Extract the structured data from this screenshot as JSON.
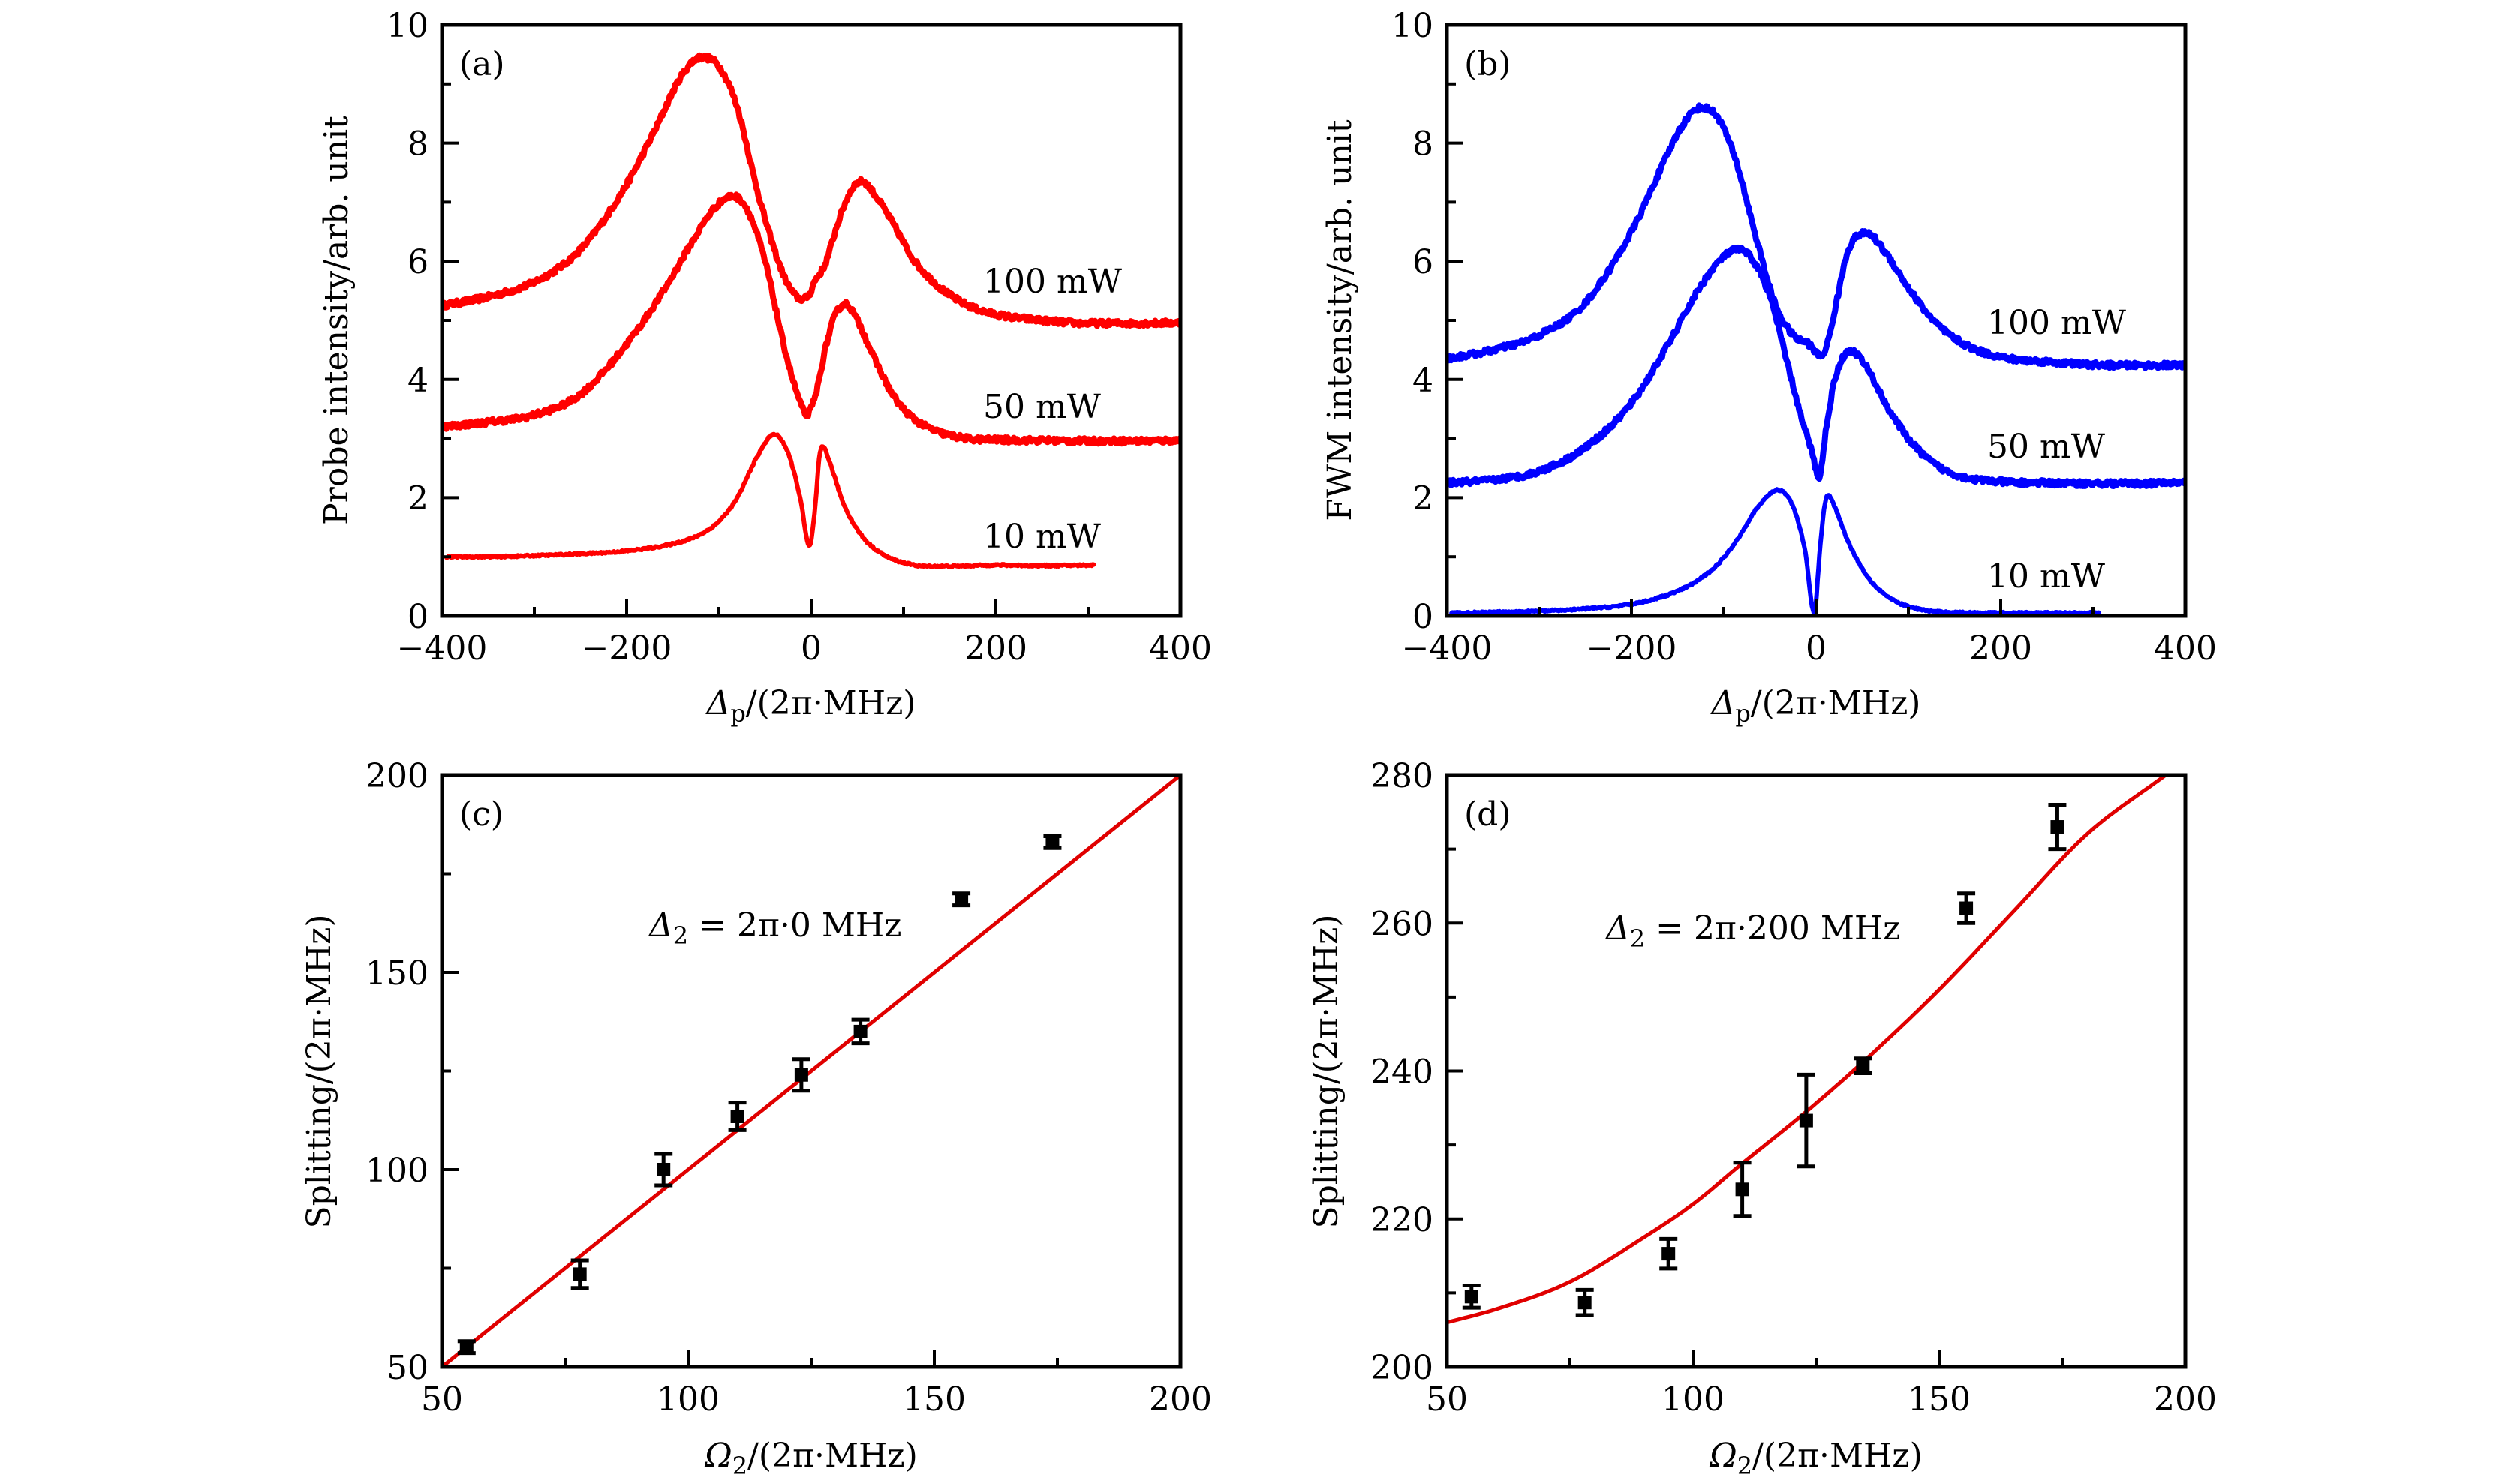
{
  "figure": {
    "panels": [
      "(a)",
      "(b)",
      "(c)",
      "(d)"
    ]
  },
  "chart_data": [
    {
      "id": "a",
      "type": "line",
      "panel_label": "(a)",
      "xlabel_symbol": "Δ",
      "xlabel_sub": "p",
      "xlabel_rest": "/(2π·MHz)",
      "ylabel": "Probe intensity/arb. unit",
      "xlim": [
        -400,
        400
      ],
      "ylim": [
        0,
        10
      ],
      "xticks": [
        -400,
        -200,
        0,
        200,
        400
      ],
      "xtick_labels": [
        "−400",
        "−200",
        "0",
        "200",
        "400"
      ],
      "xminor": [
        -300,
        -100,
        100,
        300
      ],
      "yticks": [
        0,
        2,
        4,
        6,
        8,
        10
      ],
      "ytick_labels": [
        "0",
        "2",
        "4",
        "6",
        "8",
        "10"
      ],
      "yminor": [
        1,
        3,
        5,
        7,
        9
      ],
      "color": "#ff0000",
      "grid": false,
      "series": [
        {
          "name": "100 mW",
          "label": "100 mW",
          "x": [
            -400,
            -350,
            -300,
            -250,
            -200,
            -170,
            -140,
            -120,
            -100,
            -80,
            -60,
            -40,
            -25,
            -10,
            0,
            2,
            15,
            30,
            45,
            55,
            70,
            90,
            110,
            140,
            170,
            200,
            250,
            300,
            350,
            400
          ],
          "y": [
            5.25,
            5.4,
            5.65,
            6.2,
            7.3,
            8.2,
            9.15,
            9.45,
            9.3,
            8.6,
            7.3,
            6.2,
            5.6,
            5.36,
            5.5,
            5.6,
            5.95,
            6.7,
            7.25,
            7.35,
            7.1,
            6.6,
            6.05,
            5.55,
            5.25,
            5.1,
            5.0,
            4.95,
            4.95,
            4.96
          ]
        },
        {
          "name": "50 mW",
          "label": "50 mW",
          "x": [
            -400,
            -350,
            -300,
            -250,
            -200,
            -160,
            -130,
            -105,
            -85,
            -70,
            -50,
            -30,
            -15,
            -5,
            5,
            15,
            25,
            37,
            50,
            70,
            90,
            110,
            140,
            170,
            200,
            250,
            300,
            350,
            400
          ],
          "y": [
            3.2,
            3.28,
            3.4,
            3.75,
            4.6,
            5.5,
            6.3,
            6.9,
            7.1,
            6.9,
            6.0,
            4.6,
            3.75,
            3.41,
            3.75,
            4.5,
            5.05,
            5.28,
            5.0,
            4.3,
            3.7,
            3.35,
            3.1,
            3.0,
            2.98,
            2.97,
            2.96,
            2.96,
            2.97
          ]
        },
        {
          "name": "10 mW",
          "label": "10 mW",
          "x": [
            -395,
            -350,
            -300,
            -250,
            -200,
            -150,
            -120,
            -100,
            -80,
            -60,
            -40,
            -25,
            -12,
            -2,
            4,
            9,
            13,
            20,
            35,
            55,
            80,
            100,
            125,
            150,
            200,
            250,
            306
          ],
          "y": [
            1.0,
            1.0,
            1.02,
            1.05,
            1.1,
            1.22,
            1.38,
            1.6,
            2.0,
            2.65,
            3.07,
            2.75,
            2.0,
            1.18,
            1.8,
            2.7,
            2.86,
            2.6,
            1.9,
            1.35,
            1.02,
            0.9,
            0.84,
            0.84,
            0.86,
            0.85,
            0.86
          ]
        }
      ],
      "curve_label_anchor_y": [
        5.8,
        3.6,
        1.2
      ]
    },
    {
      "id": "b",
      "type": "line",
      "panel_label": "(b)",
      "xlabel_symbol": "Δ",
      "xlabel_sub": "p",
      "xlabel_rest": "/(2π·MHz)",
      "ylabel": "FWM intensity/arb. unit",
      "xlim": [
        -400,
        400
      ],
      "ylim": [
        0,
        10
      ],
      "xticks": [
        -400,
        -200,
        0,
        200,
        400
      ],
      "xtick_labels": [
        "−400",
        "−200",
        "0",
        "200",
        "400"
      ],
      "xminor": [
        -300,
        -100,
        100,
        300
      ],
      "yticks": [
        0,
        2,
        4,
        6,
        8,
        10
      ],
      "ytick_labels": [
        "0",
        "2",
        "4",
        "6",
        "8",
        "10"
      ],
      "yminor": [
        1,
        3,
        5,
        7,
        9
      ],
      "color": "#0000ff",
      "grid": false,
      "series": [
        {
          "name": "100 mW",
          "label": "100 mW",
          "x": [
            -400,
            -350,
            -300,
            -250,
            -200,
            -170,
            -145,
            -125,
            -105,
            -85,
            -65,
            -45,
            -25,
            -8,
            5,
            12,
            22,
            35,
            55,
            75,
            100,
            130,
            160,
            200,
            250,
            300,
            350,
            400
          ],
          "y": [
            4.35,
            4.5,
            4.75,
            5.3,
            6.5,
            7.5,
            8.3,
            8.6,
            8.4,
            7.6,
            6.4,
            5.3,
            4.75,
            4.6,
            4.4,
            4.6,
            5.3,
            6.2,
            6.47,
            6.15,
            5.55,
            4.95,
            4.6,
            4.38,
            4.3,
            4.25,
            4.24,
            4.24
          ]
        },
        {
          "name": "50 mW",
          "label": "50 mW",
          "x": [
            -400,
            -350,
            -300,
            -250,
            -200,
            -160,
            -130,
            -105,
            -85,
            -70,
            -50,
            -30,
            -15,
            -5,
            3,
            12,
            22,
            38,
            55,
            75,
            100,
            130,
            160,
            200,
            250,
            300,
            350,
            400
          ],
          "y": [
            2.25,
            2.3,
            2.45,
            2.85,
            3.6,
            4.6,
            5.45,
            6.0,
            6.2,
            6.05,
            5.4,
            4.2,
            3.3,
            2.8,
            2.35,
            3.3,
            4.1,
            4.48,
            4.2,
            3.6,
            3.0,
            2.55,
            2.35,
            2.27,
            2.25,
            2.24,
            2.24,
            2.26
          ]
        },
        {
          "name": "10 mW",
          "label": "10 mW",
          "x": [
            -395,
            -350,
            -300,
            -250,
            -200,
            -160,
            -130,
            -105,
            -85,
            -65,
            -41,
            -25,
            -12,
            -2,
            4,
            9,
            13,
            20,
            35,
            55,
            80,
            100,
            125,
            150,
            200,
            250,
            306
          ],
          "y": [
            0.05,
            0.06,
            0.08,
            0.12,
            0.2,
            0.36,
            0.58,
            0.9,
            1.3,
            1.8,
            2.13,
            1.85,
            1.1,
            0.05,
            1.1,
            1.85,
            2.04,
            1.85,
            1.25,
            0.68,
            0.3,
            0.16,
            0.08,
            0.06,
            0.05,
            0.05,
            0.05
          ]
        }
      ]
    },
    {
      "id": "c",
      "type": "scatter",
      "panel_label": "(c)",
      "xlabel_symbol": "Ω",
      "xlabel_sub": "2",
      "xlabel_rest": "/(2π·MHz)",
      "ylabel": "Splitting/(2π·MHz)",
      "xlim": [
        50,
        200
      ],
      "ylim": [
        50,
        200
      ],
      "xticks": [
        50,
        100,
        150,
        200
      ],
      "xtick_labels": [
        "50",
        "100",
        "150",
        "200"
      ],
      "xminor": [
        75,
        125,
        175
      ],
      "yticks": [
        50,
        100,
        150,
        200
      ],
      "ytick_labels": [
        "50",
        "100",
        "150",
        "200"
      ],
      "yminor": [
        75,
        125,
        175
      ],
      "annotation": {
        "symbol": "Δ",
        "sub": "2",
        "rest": " = 2π·0 MHz"
      },
      "grid": false,
      "points": {
        "x": [
          55,
          78,
          95,
          110,
          123,
          135,
          155.5,
          174
        ],
        "y": [
          55,
          73.5,
          100,
          113.5,
          124,
          135,
          168.5,
          183
        ],
        "err": [
          1.5,
          3.5,
          4,
          3.5,
          4,
          3,
          1.5,
          1.5
        ],
        "color": "#000000"
      },
      "fit": {
        "name": "fit",
        "color": "#e00000",
        "x": [
          50,
          200
        ],
        "y": [
          50,
          200
        ]
      }
    },
    {
      "id": "d",
      "type": "scatter",
      "panel_label": "(d)",
      "xlabel_symbol": "Ω",
      "xlabel_sub": "2",
      "xlabel_rest": "/(2π·MHz)",
      "ylabel": "Splitting/(2π·MHz)",
      "xlim": [
        50,
        200
      ],
      "ylim": [
        200,
        280
      ],
      "xticks": [
        50,
        100,
        150,
        200
      ],
      "xtick_labels": [
        "50",
        "100",
        "150",
        "200"
      ],
      "xminor": [
        75,
        125,
        175
      ],
      "yticks": [
        200,
        220,
        240,
        260,
        280
      ],
      "ytick_labels": [
        "200",
        "220",
        "240",
        "260",
        "280"
      ],
      "yminor": [
        210,
        230,
        250,
        270
      ],
      "annotation": {
        "symbol": "Δ",
        "sub": "2",
        "rest": " = 2π·200 MHz"
      },
      "grid": false,
      "points": {
        "x": [
          55,
          78,
          95,
          110,
          123,
          134.5,
          155.5,
          174
        ],
        "y": [
          209.5,
          208.7,
          215.3,
          224,
          233.3,
          240.7,
          262,
          273
        ],
        "err": [
          1.5,
          1.7,
          2,
          3.6,
          6.2,
          1,
          2,
          3
        ],
        "color": "#000000"
      },
      "fit": {
        "name": "fit",
        "color": "#e00000",
        "x": [
          50,
          60,
          75,
          90,
          100,
          110,
          123,
          135,
          150,
          165,
          180,
          196
        ],
        "y": [
          206,
          207.8,
          211.5,
          217.5,
          222,
          227.5,
          234.5,
          241.5,
          251,
          261.5,
          272,
          280
        ]
      }
    }
  ]
}
